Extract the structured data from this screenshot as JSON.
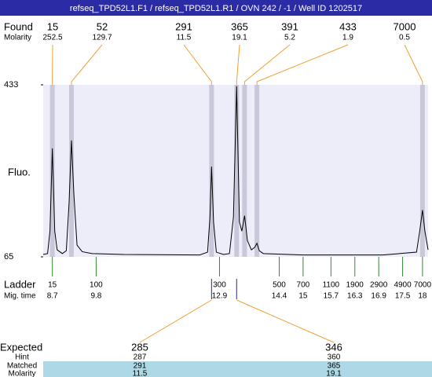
{
  "header": {
    "title": "refseq_TPD52L1.F1 / refseq_TPD52L1.R1 / OVN 242 / -1 / Well ID 1202517"
  },
  "labels": {
    "found": "Found",
    "molarity": "Molarity",
    "ladder": "Ladder",
    "mig_time": "Mig. time",
    "expected": "Expected",
    "hint": "Hint",
    "matched": "Matched",
    "molarity2": "Molarity"
  },
  "chart_data": {
    "type": "line",
    "ylabel": "Fluo.",
    "ylim": [
      65,
      433
    ],
    "yticks": [
      65,
      433
    ],
    "xlim": [
      8.47,
      18.14
    ],
    "color": "#000000",
    "band_color": "#c8c8d8",
    "plot_color": "#ededfa",
    "x": [
      8.47,
      8.58,
      8.64,
      8.7,
      8.76,
      8.82,
      8.95,
      9.05,
      9.12,
      9.18,
      9.24,
      9.32,
      9.45,
      9.7,
      10.5,
      12.4,
      12.6,
      12.66,
      12.7,
      12.75,
      12.82,
      13.0,
      13.15,
      13.25,
      13.33,
      13.4,
      13.46,
      13.53,
      13.6,
      13.7,
      13.78,
      13.84,
      13.9,
      14.0,
      15.0,
      17.0,
      17.85,
      17.93,
      18.0,
      18.06,
      18.14
    ],
    "values": [
      70,
      72,
      120,
      297,
      120,
      80,
      72,
      78,
      180,
      314,
      200,
      90,
      76,
      72,
      70,
      69,
      75,
      150,
      258,
      140,
      75,
      70,
      72,
      150,
      430,
      140,
      120,
      153,
      100,
      80,
      85,
      94,
      78,
      72,
      69,
      69,
      75,
      120,
      165,
      120,
      80
    ],
    "found": [
      {
        "size": 15,
        "molarity": 252.5,
        "time": 8.7
      },
      {
        "size": 52,
        "molarity": 129.7,
        "time": 9.18
      },
      {
        "size": 291,
        "molarity": 11.5,
        "time": 12.7
      },
      {
        "size": 365,
        "molarity": 19.1,
        "time": 13.33
      },
      {
        "size": 391,
        "molarity": 5.2,
        "time": 13.53
      },
      {
        "size": 433,
        "molarity": 1.9,
        "time": 13.84
      },
      {
        "size": 7000,
        "molarity": 0.5,
        "time": 18.0
      }
    ],
    "ladder": [
      {
        "size": 15,
        "time": 8.7
      },
      {
        "size": 100,
        "time": 9.8
      },
      {
        "size": 300,
        "time": 12.9
      },
      {
        "size": 500,
        "time": 14.4
      },
      {
        "size": 700,
        "time": 15
      },
      {
        "size": 1100,
        "time": 15.7
      },
      {
        "size": 1900,
        "time": 16.3
      },
      {
        "size": 2900,
        "time": 16.9
      },
      {
        "size": 4900,
        "time": 17.5
      },
      {
        "size": 7000,
        "time": 18
      }
    ],
    "expected": [
      {
        "expected": 285,
        "hint": 287,
        "matched": 291,
        "molarity": 11.5,
        "time": 12.7
      },
      {
        "expected": 346,
        "hint": 360,
        "matched": 365,
        "molarity": 19.1,
        "time": 13.33
      }
    ]
  }
}
